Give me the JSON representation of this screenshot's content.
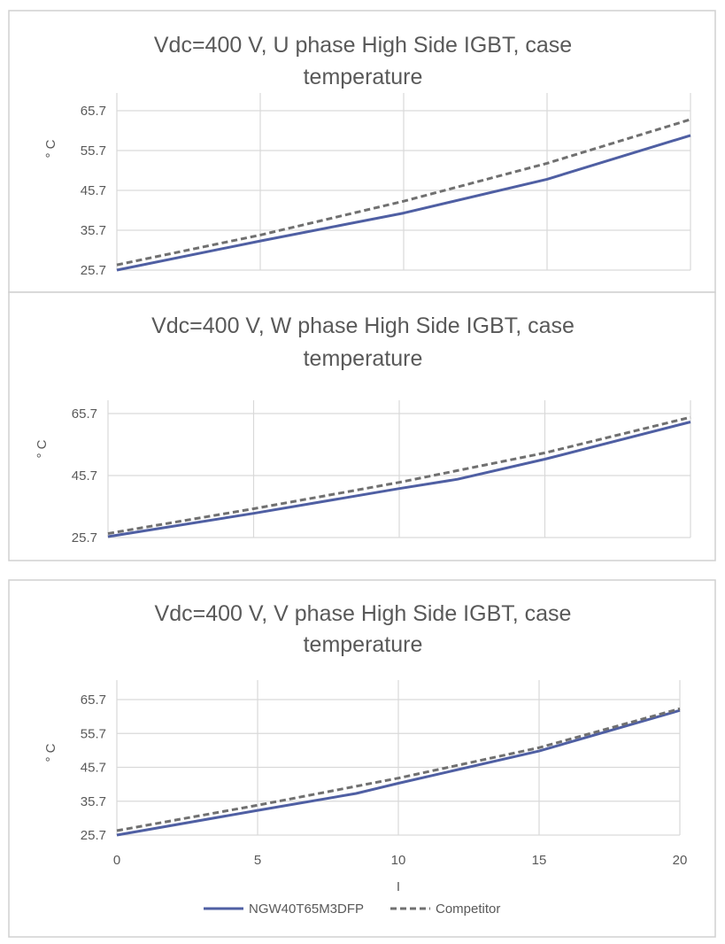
{
  "colors": {
    "ngw": "#4f5fa3",
    "competitor": "#707070",
    "grid": "#d9d9d9",
    "text": "#595959"
  },
  "legend": {
    "position": "bottom",
    "series_names": [
      "NGW40T65M3DFP",
      "Competitor"
    ]
  },
  "chart_data": [
    {
      "type": "line",
      "title": [
        "Vdc=400 V, U phase High Side IGBT, case",
        "temperature"
      ],
      "xlabel": "",
      "ylabel": "° C",
      "xlim": [
        0,
        20
      ],
      "ylim": [
        25.7,
        65.7
      ],
      "yticks": [
        "25.7",
        "35.7",
        "45.7",
        "55.7",
        "65.7"
      ],
      "xticks": [],
      "grid": true,
      "series": [
        {
          "name": "NGW40T65M3DFP",
          "x": [
            0,
            5,
            10,
            15,
            20
          ],
          "y": [
            25.7,
            33.0,
            40.0,
            48.5,
            59.5
          ]
        },
        {
          "name": "Competitor",
          "x": [
            0,
            5,
            10,
            15,
            20
          ],
          "y": [
            27.0,
            34.5,
            43.0,
            52.5,
            63.5
          ]
        }
      ]
    },
    {
      "type": "line",
      "title": [
        "Vdc=400 V, W phase High Side IGBT, case",
        "temperature"
      ],
      "xlabel": "",
      "ylabel": "° C",
      "xlim": [
        0,
        20
      ],
      "ylim": [
        25.7,
        65.7
      ],
      "yticks": [
        "25.7",
        "45.7",
        "65.7"
      ],
      "xticks": [],
      "grid": true,
      "series": [
        {
          "name": "NGW40T65M3DFP",
          "x": [
            0,
            5,
            10,
            12,
            15,
            20
          ],
          "y": [
            26.0,
            33.5,
            41.5,
            44.5,
            51.0,
            63.0
          ]
        },
        {
          "name": "Competitor",
          "x": [
            0,
            5,
            10,
            15,
            20
          ],
          "y": [
            27.0,
            35.0,
            43.5,
            53.0,
            64.5
          ]
        }
      ]
    },
    {
      "type": "line",
      "title": [
        "Vdc=400 V, V phase High Side IGBT, case",
        "temperature"
      ],
      "xlabel": "I",
      "ylabel": "° C",
      "xlim": [
        0,
        20
      ],
      "ylim": [
        25.7,
        65.7
      ],
      "yticks": [
        "25.7",
        "35.7",
        "45.7",
        "55.7",
        "65.7"
      ],
      "xticks": [
        "0",
        "5",
        "10",
        "15",
        "20"
      ],
      "grid": true,
      "series": [
        {
          "name": "NGW40T65M3DFP",
          "x": [
            0,
            5,
            8.5,
            10,
            15,
            20
          ],
          "y": [
            25.7,
            33.0,
            38.0,
            41.0,
            50.5,
            62.5
          ]
        },
        {
          "name": "Competitor",
          "x": [
            0,
            5,
            10,
            15,
            20
          ],
          "y": [
            27.0,
            34.5,
            42.5,
            51.5,
            63.0
          ]
        }
      ]
    }
  ]
}
